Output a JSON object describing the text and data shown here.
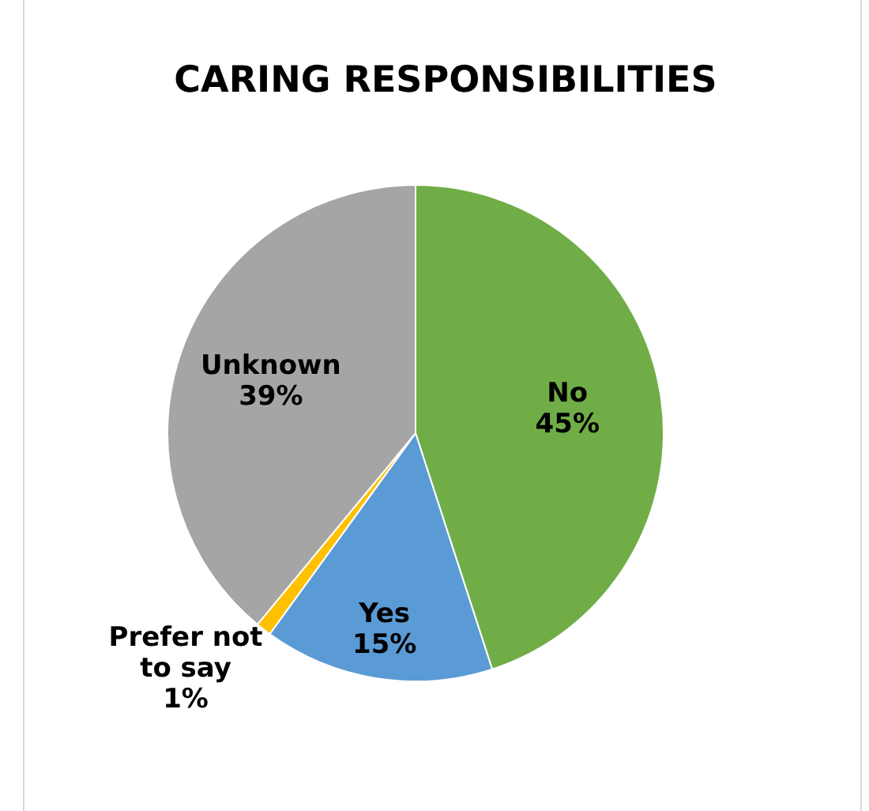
{
  "chart_data": {
    "type": "pie",
    "title": "CARING RESPONSIBILITIES",
    "categories": [
      "No",
      "Yes",
      "Prefer not to say",
      "Unknown"
    ],
    "values": [
      45,
      15,
      1,
      39
    ],
    "colors": [
      "#70ad47",
      "#5b9bd5",
      "#ffc000",
      "#a5a5a5"
    ],
    "value_labels": [
      "45%",
      "15%",
      "1%",
      "39%"
    ]
  }
}
